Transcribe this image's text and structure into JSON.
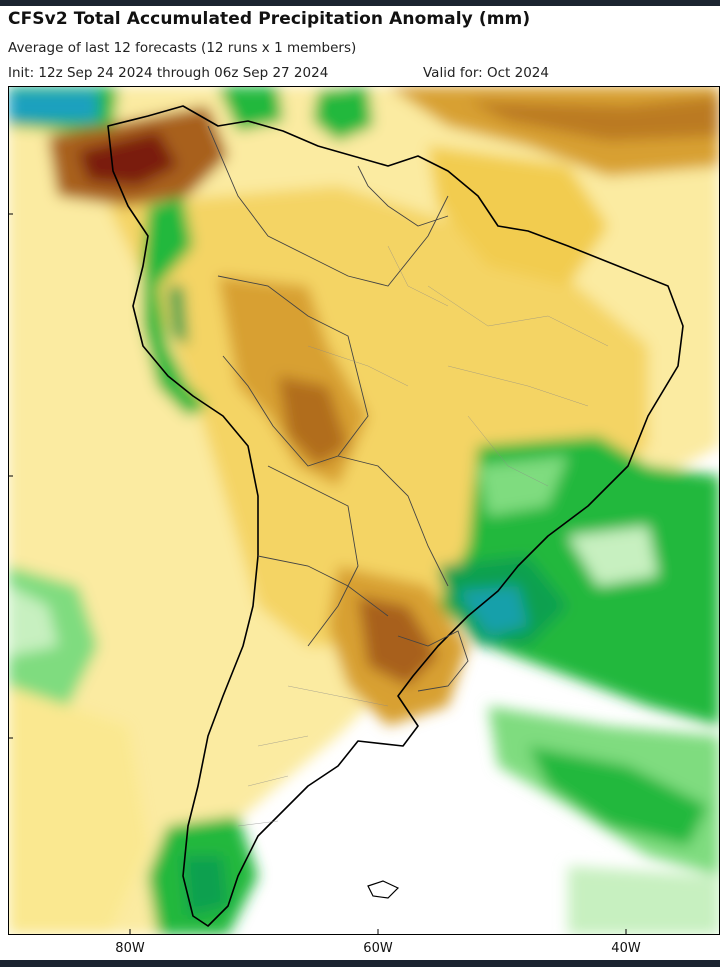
{
  "header": {
    "title": "CFSv2 Total Accumulated Precipitation Anomaly (mm)",
    "subtitle": "Average of last 12 forecasts (12 runs x 1 members)",
    "init": "Init: 12z Sep 24 2024 through 06z Sep 27 2024",
    "valid": "Valid for: Oct 2024"
  },
  "map": {
    "region": "South America",
    "field": "precipitation anomaly",
    "lon_ticks": [
      "80W",
      "60W",
      "40W"
    ],
    "lon_tick_values": [
      -80,
      -60,
      -40
    ],
    "colors": {
      "very_dry": "#7a1f10",
      "dry_strong": "#a8601c",
      "dry": "#d8a030",
      "dry_light": "#f2cc50",
      "dry_faint": "#fae890",
      "neutral": "#ffffff",
      "wet_faint": "#c7f0c0",
      "wet_light": "#7fdc7f",
      "wet": "#22b83c",
      "wet_strong": "#10a050",
      "very_wet": "#1aa0c0",
      "boundaries": "#000000",
      "internal_borders": "#555555"
    }
  }
}
